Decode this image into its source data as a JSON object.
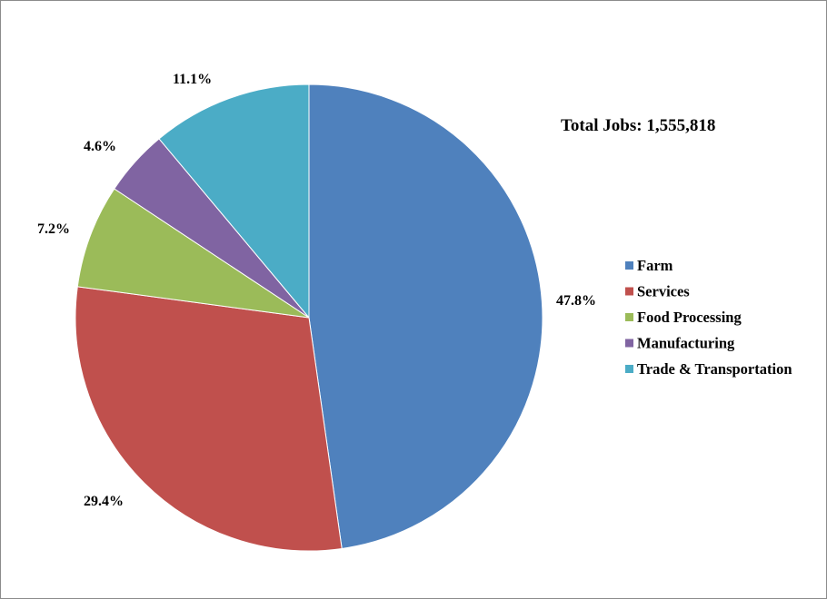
{
  "chart_data": {
    "type": "pie",
    "annotation": "Total Jobs: 1,555,818",
    "slices": [
      {
        "label": "Farm",
        "value": 47.8,
        "display": "47.8%",
        "color": "#4F81BD"
      },
      {
        "label": "Services",
        "value": 29.4,
        "display": "29.4%",
        "color": "#C0504D"
      },
      {
        "label": "Food Processing",
        "value": 7.2,
        "display": "7.2%",
        "color": "#9BBB59"
      },
      {
        "label": "Manufacturing",
        "value": 4.6,
        "display": "4.6%",
        "color": "#8064A2"
      },
      {
        "label": "Trade & Transportation",
        "value": 11.1,
        "display": "11.1%",
        "color": "#4BACC6"
      }
    ],
    "legend_position": "right",
    "start_angle": "12 o'clock",
    "direction": "clockwise"
  }
}
